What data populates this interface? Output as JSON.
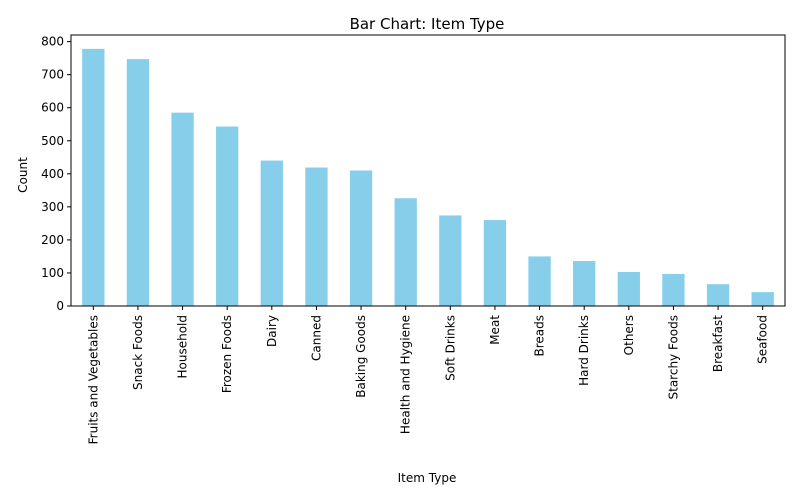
{
  "chart_data": {
    "type": "bar",
    "title": "Bar Chart: Item Type",
    "xlabel": "Item Type",
    "ylabel": "Count",
    "ylim": [
      0,
      820
    ],
    "yticks": [
      0,
      100,
      200,
      300,
      400,
      500,
      600,
      700,
      800
    ],
    "categories": [
      "Fruits and Vegetables",
      "Snack Foods",
      "Household",
      "Frozen Foods",
      "Dairy",
      "Canned",
      "Baking Goods",
      "Health and Hygiene",
      "Soft Drinks",
      "Meat",
      "Breads",
      "Hard Drinks",
      "Others",
      "Starchy Foods",
      "Breakfast",
      "Seafood"
    ],
    "values": [
      778,
      747,
      585,
      543,
      440,
      419,
      410,
      326,
      274,
      260,
      150,
      136,
      103,
      97,
      66,
      42
    ],
    "bar_color": "#87ceeb",
    "grid": false,
    "legend": "none"
  }
}
